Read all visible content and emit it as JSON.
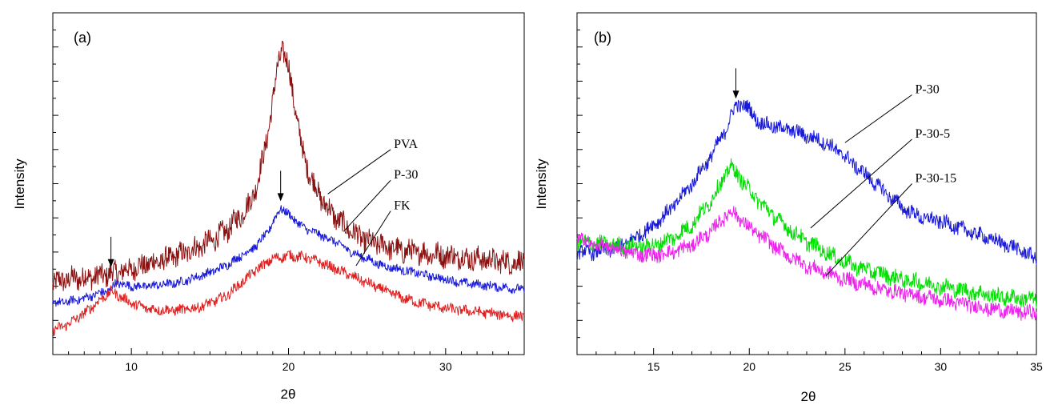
{
  "chart_data": [
    {
      "type": "line",
      "panel_label": "(a)",
      "xlabel": "2θ",
      "ylabel": "Intensity",
      "xlim": [
        5,
        35
      ],
      "ylim": [
        0,
        100
      ],
      "x_ticks": [
        10,
        20,
        30
      ],
      "y_ticks_shown": false,
      "grid": false,
      "arrows_at_x": [
        8.7,
        19.5
      ],
      "series": [
        {
          "name": "PVA",
          "color": "#8b1010",
          "noise": 3.2,
          "points": [
            [
              5,
              21
            ],
            [
              6,
              22
            ],
            [
              7,
              22.5
            ],
            [
              8,
              23
            ],
            [
              9,
              24
            ],
            [
              10,
              25
            ],
            [
              11,
              26.5
            ],
            [
              12,
              27.5
            ],
            [
              13,
              29
            ],
            [
              14,
              31
            ],
            [
              15,
              33
            ],
            [
              16,
              36
            ],
            [
              17,
              41
            ],
            [
              17.5,
              44
            ],
            [
              18,
              50
            ],
            [
              18.5,
              60
            ],
            [
              19,
              74
            ],
            [
              19.3,
              84
            ],
            [
              19.6,
              90
            ],
            [
              20,
              84
            ],
            [
              20.5,
              70
            ],
            [
              21,
              57
            ],
            [
              22,
              46
            ],
            [
              23,
              40
            ],
            [
              24,
              36
            ],
            [
              25,
              33
            ],
            [
              26,
              32
            ],
            [
              27,
              30.5
            ],
            [
              28,
              30
            ],
            [
              29,
              29.5
            ],
            [
              30,
              29
            ],
            [
              31,
              28.5
            ],
            [
              32,
              28
            ],
            [
              33,
              27.5
            ],
            [
              34,
              27
            ],
            [
              35,
              27
            ]
          ]
        },
        {
          "name": "P-30",
          "color": "#1a1adb",
          "noise": 1.2,
          "points": [
            [
              5,
              15
            ],
            [
              6,
              15.5
            ],
            [
              7,
              16.5
            ],
            [
              8,
              18
            ],
            [
              8.7,
              19
            ],
            [
              9,
              21
            ],
            [
              10,
              20
            ],
            [
              11,
              20
            ],
            [
              12,
              20.5
            ],
            [
              13,
              21
            ],
            [
              14,
              22.5
            ],
            [
              15,
              24
            ],
            [
              16,
              26
            ],
            [
              17,
              29
            ],
            [
              18,
              32
            ],
            [
              18.7,
              36
            ],
            [
              19.5,
              43
            ],
            [
              20,
              41
            ],
            [
              20.5,
              39
            ],
            [
              21,
              37
            ],
            [
              22,
              35
            ],
            [
              23,
              33
            ],
            [
              24,
              30
            ],
            [
              25,
              28
            ],
            [
              26,
              26
            ],
            [
              27,
              25
            ],
            [
              28,
              24
            ],
            [
              29,
              23
            ],
            [
              30,
              22
            ],
            [
              31,
              21
            ],
            [
              32,
              20.5
            ],
            [
              33,
              20
            ],
            [
              34,
              19.5
            ],
            [
              35,
              19
            ]
          ]
        },
        {
          "name": "FK",
          "color": "#e02020",
          "noise": 1.4,
          "points": [
            [
              5,
              7
            ],
            [
              6,
              9
            ],
            [
              7,
              12
            ],
            [
              8,
              16
            ],
            [
              8.7,
              18.5
            ],
            [
              9.3,
              17
            ],
            [
              10,
              15
            ],
            [
              11,
              13.5
            ],
            [
              12,
              13
            ],
            [
              13,
              13
            ],
            [
              14,
              13.5
            ],
            [
              15,
              15
            ],
            [
              16,
              17
            ],
            [
              17,
              21
            ],
            [
              18,
              25
            ],
            [
              19,
              28
            ],
            [
              20,
              29
            ],
            [
              21,
              28.5
            ],
            [
              22,
              27
            ],
            [
              23,
              25
            ],
            [
              24,
              23
            ],
            [
              25,
              21
            ],
            [
              26,
              19
            ],
            [
              27,
              17
            ],
            [
              28,
              15.5
            ],
            [
              29,
              14.5
            ],
            [
              30,
              13.5
            ],
            [
              31,
              13
            ],
            [
              32,
              12.5
            ],
            [
              33,
              12
            ],
            [
              34,
              11.5
            ],
            [
              35,
              11
            ]
          ]
        }
      ],
      "annotations": [
        {
          "text": "PVA",
          "target": [
            22.5,
            47
          ],
          "anchor": [
            26.5,
            60
          ]
        },
        {
          "text": "P-30",
          "target": [
            23.5,
            36
          ],
          "anchor": [
            26.5,
            51
          ]
        },
        {
          "text": "FK",
          "target": [
            24.3,
            26
          ],
          "anchor": [
            26.5,
            42
          ]
        }
      ]
    },
    {
      "type": "line",
      "panel_label": "(b)",
      "xlabel": "2θ",
      "ylabel": "Intensity",
      "xlim": [
        11,
        35
      ],
      "ylim": [
        0,
        100
      ],
      "x_ticks": [
        15,
        20,
        25,
        30,
        35
      ],
      "y_ticks_shown": false,
      "grid": false,
      "arrows_at_x": [
        19.3
      ],
      "series": [
        {
          "name": "P-30",
          "color": "#1a1adb",
          "noise": 2.0,
          "points": [
            [
              11,
              30
            ],
            [
              12,
              30
            ],
            [
              13,
              31
            ],
            [
              14,
              34
            ],
            [
              15,
              38
            ],
            [
              16,
              43
            ],
            [
              17,
              50
            ],
            [
              18,
              58
            ],
            [
              18.7,
              65
            ],
            [
              19.3,
              73
            ],
            [
              19.8,
              73
            ],
            [
              20.5,
              68
            ],
            [
              21,
              67
            ],
            [
              22,
              66
            ],
            [
              23,
              64
            ],
            [
              24,
              62
            ],
            [
              25,
              58
            ],
            [
              26,
              53
            ],
            [
              27,
              48
            ],
            [
              28,
              43
            ],
            [
              29,
              40
            ],
            [
              30,
              39
            ],
            [
              31,
              37
            ],
            [
              32,
              35
            ],
            [
              33,
              33
            ],
            [
              34,
              31
            ],
            [
              35,
              28
            ]
          ]
        },
        {
          "name": "P-30-5",
          "color": "#00e000",
          "noise": 2.2,
          "points": [
            [
              11,
              33
            ],
            [
              12,
              32.5
            ],
            [
              13,
              32
            ],
            [
              14,
              31.5
            ],
            [
              15,
              32
            ],
            [
              16,
              34
            ],
            [
              17,
              38
            ],
            [
              18,
              45
            ],
            [
              19,
              55
            ],
            [
              19.5,
              52
            ],
            [
              20,
              48
            ],
            [
              21,
              42
            ],
            [
              22,
              37
            ],
            [
              23,
              33
            ],
            [
              24,
              30
            ],
            [
              25,
              27
            ],
            [
              26,
              25
            ],
            [
              27,
              23.5
            ],
            [
              28,
              22
            ],
            [
              29,
              21
            ],
            [
              30,
              20
            ],
            [
              31,
              19
            ],
            [
              32,
              18
            ],
            [
              33,
              17
            ],
            [
              34,
              16.5
            ],
            [
              35,
              16
            ]
          ]
        },
        {
          "name": "P-30-15",
          "color": "#ee22ee",
          "noise": 2.0,
          "points": [
            [
              11,
              34
            ],
            [
              12,
              32
            ],
            [
              13,
              31
            ],
            [
              14,
              29.5
            ],
            [
              15,
              29
            ],
            [
              16,
              30
            ],
            [
              17,
              32
            ],
            [
              18,
              36
            ],
            [
              19,
              42
            ],
            [
              19.5,
              40
            ],
            [
              20,
              37
            ],
            [
              21,
              33
            ],
            [
              22,
              29
            ],
            [
              23,
              26
            ],
            [
              24,
              24
            ],
            [
              25,
              22
            ],
            [
              26,
              20.5
            ],
            [
              27,
              19
            ],
            [
              28,
              18
            ],
            [
              29,
              17
            ],
            [
              30,
              16
            ],
            [
              31,
              15
            ],
            [
              32,
              14
            ],
            [
              33,
              13
            ],
            [
              34,
              12.5
            ],
            [
              35,
              12
            ]
          ]
        }
      ],
      "annotations": [
        {
          "text": "P-30",
          "target": [
            25,
            62
          ],
          "anchor": [
            28.5,
            76
          ]
        },
        {
          "text": "P-30-5",
          "target": [
            23.2,
            37
          ],
          "anchor": [
            28.5,
            63
          ]
        },
        {
          "text": "P-30-15",
          "target": [
            24,
            23
          ],
          "anchor": [
            28.5,
            50
          ]
        }
      ]
    }
  ]
}
